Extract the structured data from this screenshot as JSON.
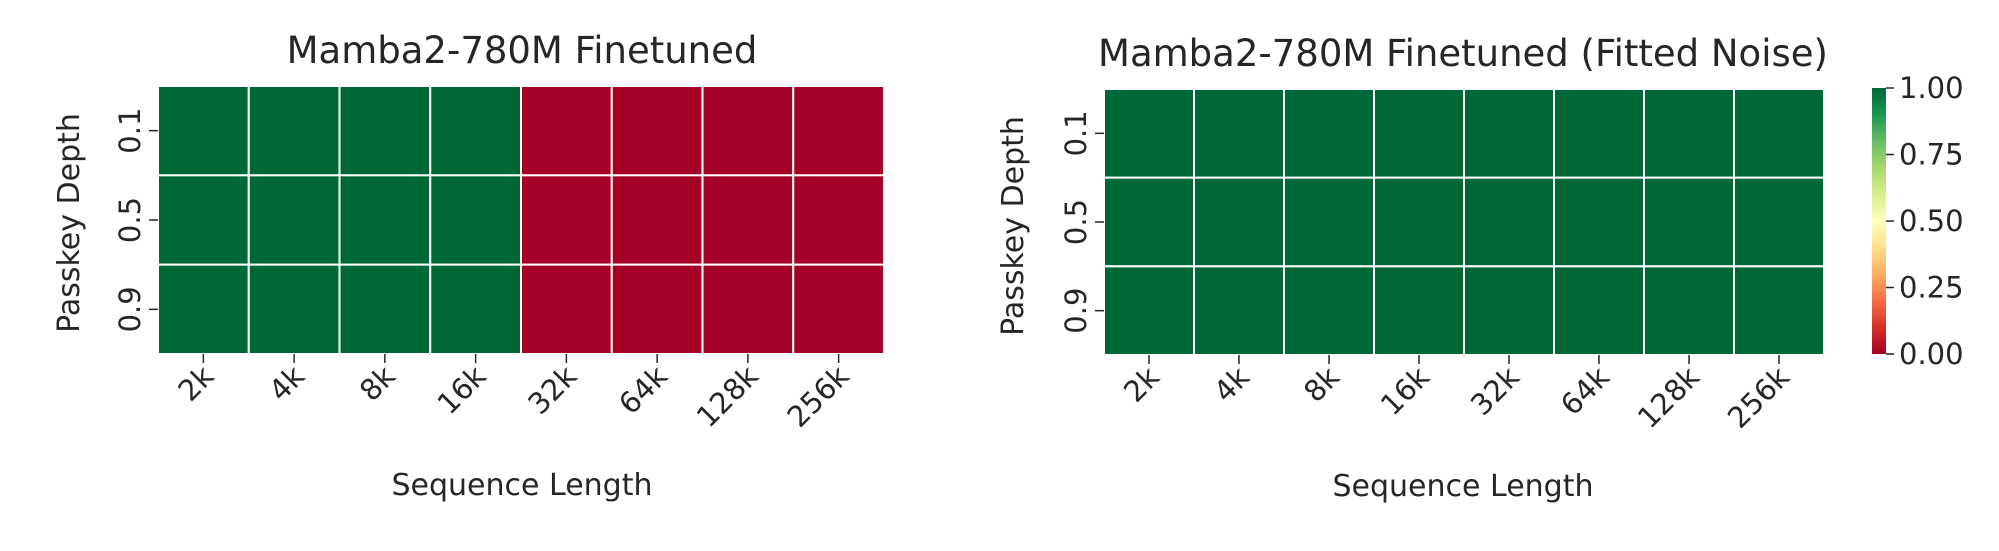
{
  "chart_data": [
    {
      "type": "heatmap",
      "title": "Mamba2-780M Finetuned",
      "xlabel": "Sequence Length",
      "ylabel": "Passkey Depth",
      "x_categories": [
        "2k",
        "4k",
        "8k",
        "16k",
        "32k",
        "64k",
        "128k",
        "256k"
      ],
      "y_categories": [
        "0.1",
        "0.5",
        "0.9"
      ],
      "values": [
        [
          1,
          1,
          1,
          1,
          0,
          0,
          0,
          0
        ],
        [
          1,
          1,
          1,
          1,
          0,
          0,
          0,
          0
        ],
        [
          1,
          1,
          1,
          1,
          0,
          0,
          0,
          0
        ]
      ],
      "colorbar": false
    },
    {
      "type": "heatmap",
      "title": "Mamba2-780M  Finetuned (Fitted Noise)",
      "xlabel": "Sequence Length",
      "ylabel": "Passkey Depth",
      "x_categories": [
        "2k",
        "4k",
        "8k",
        "16k",
        "32k",
        "64k",
        "128k",
        "256k"
      ],
      "y_categories": [
        "0.1",
        "0.5",
        "0.9"
      ],
      "values": [
        [
          1,
          1,
          1,
          1,
          1,
          1,
          1,
          1
        ],
        [
          1,
          1,
          1,
          1,
          1,
          1,
          1,
          1
        ],
        [
          1,
          1,
          1,
          1,
          1,
          1,
          1,
          1
        ]
      ],
      "colorbar": true
    }
  ],
  "colorbar": {
    "colormap": "RdYlGn",
    "vmin": 0.0,
    "vmax": 1.0,
    "ticks": [
      "0.00",
      "0.25",
      "0.50",
      "0.75",
      "1.00"
    ],
    "low_color": "#a50026",
    "high_color": "#006837"
  }
}
